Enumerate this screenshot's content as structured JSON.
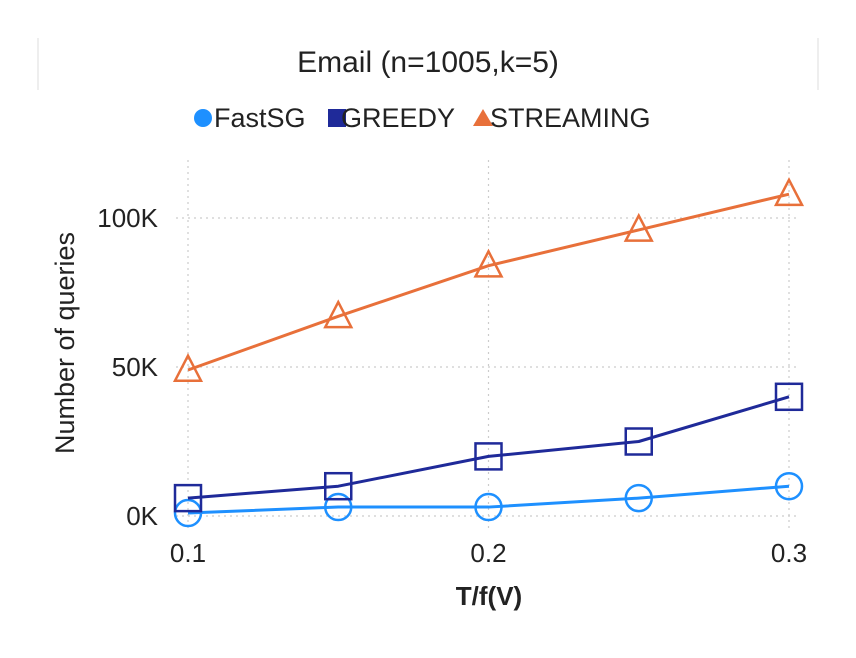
{
  "chart_data": {
    "type": "line",
    "title": "Email (n=1005,k=5)",
    "xlabel": "T/f(V)",
    "ylabel": "Number of queries",
    "x": [
      0.1,
      0.15,
      0.2,
      0.25,
      0.3
    ],
    "xticks": [
      0.1,
      0.2,
      0.3
    ],
    "xtick_labels": [
      "0.1",
      "0.2",
      "0.3"
    ],
    "yticks": [
      0,
      50000,
      100000
    ],
    "ytick_labels": [
      "0K",
      "50K",
      "100K"
    ],
    "xlim": [
      0.1,
      0.3
    ],
    "ylim": [
      0,
      100000
    ],
    "grid": true,
    "legend_position": "top",
    "series": [
      {
        "name": "FastSG",
        "marker": "circle",
        "color": "#1E90FF",
        "values": [
          1000,
          3000,
          3000,
          6000,
          10000
        ]
      },
      {
        "name": "GREEDY",
        "marker": "square",
        "color": "#1F2A99",
        "values": [
          6000,
          10000,
          20000,
          25000,
          40000
        ]
      },
      {
        "name": "STREAMING",
        "marker": "triangle",
        "color": "#E8703A",
        "values": [
          49000,
          67000,
          84000,
          96000,
          108000
        ]
      }
    ]
  }
}
